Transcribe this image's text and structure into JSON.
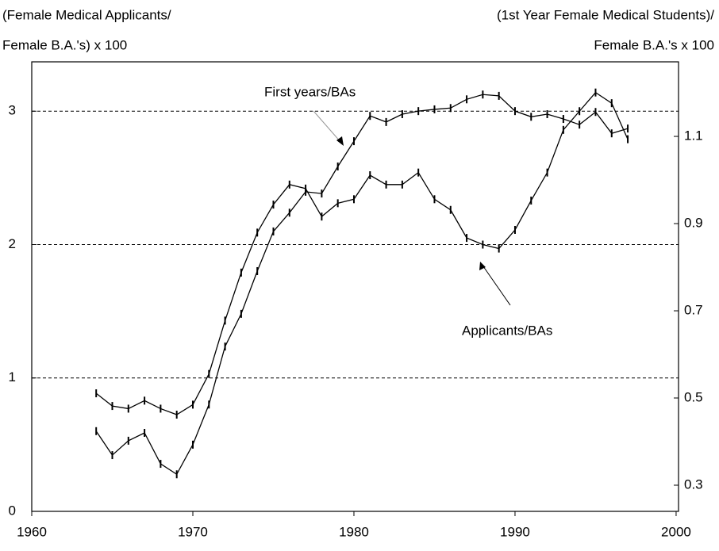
{
  "chart_data": {
    "type": "line",
    "ylabel": [
      "(Female Medical Applicants/",
      "Female B.A.'s) x 100"
    ],
    "y2label": [
      "(1st Year Female Medical Students)/",
      "Female B.A.'s x 100"
    ],
    "x": [
      1964,
      1965,
      1966,
      1967,
      1968,
      1969,
      1970,
      1971,
      1972,
      1973,
      1974,
      1975,
      1976,
      1977,
      1978,
      1979,
      1980,
      1981,
      1982,
      1983,
      1984,
      1985,
      1986,
      1987,
      1988,
      1989,
      1990,
      1991,
      1992,
      1993,
      1994,
      1995,
      1996,
      1997
    ],
    "series": [
      {
        "name": "Applicants/BAs",
        "color": "#000000",
        "values": [
          0.885,
          0.79,
          0.77,
          0.83,
          0.77,
          0.725,
          0.8,
          1.03,
          1.43,
          1.79,
          2.09,
          2.3,
          2.45,
          2.42,
          2.21,
          2.31,
          2.34,
          2.52,
          2.45,
          2.45,
          2.54,
          2.34,
          2.26,
          2.05,
          2.0,
          1.97,
          2.11,
          2.33,
          2.54,
          2.86,
          3.0,
          3.14,
          3.06,
          2.79
        ]
      },
      {
        "name": "First years/BAs",
        "color": "#000000",
        "axis": "y2",
        "values": [
          0.424,
          0.369,
          0.402,
          0.42,
          0.349,
          0.325,
          0.393,
          0.485,
          0.618,
          0.693,
          0.791,
          0.882,
          0.925,
          0.973,
          0.969,
          1.031,
          1.089,
          1.147,
          1.133,
          1.151,
          1.158,
          1.162,
          1.165,
          1.185,
          1.196,
          1.193,
          1.158,
          1.145,
          1.151,
          1.14,
          1.127,
          1.156,
          1.107,
          1.118
        ]
      }
    ],
    "xlim": [
      1960,
      2000.15
    ],
    "xticks": [
      1960,
      1970,
      1980,
      1990,
      2000
    ],
    "ylim": [
      0,
      3.37
    ],
    "yticks": [
      0,
      1,
      2,
      3
    ],
    "y2lim": [
      0.24,
      1.271
    ],
    "y2ticks": [
      0.3,
      0.5,
      0.7,
      0.9,
      1.1
    ],
    "grid": true
  }
}
